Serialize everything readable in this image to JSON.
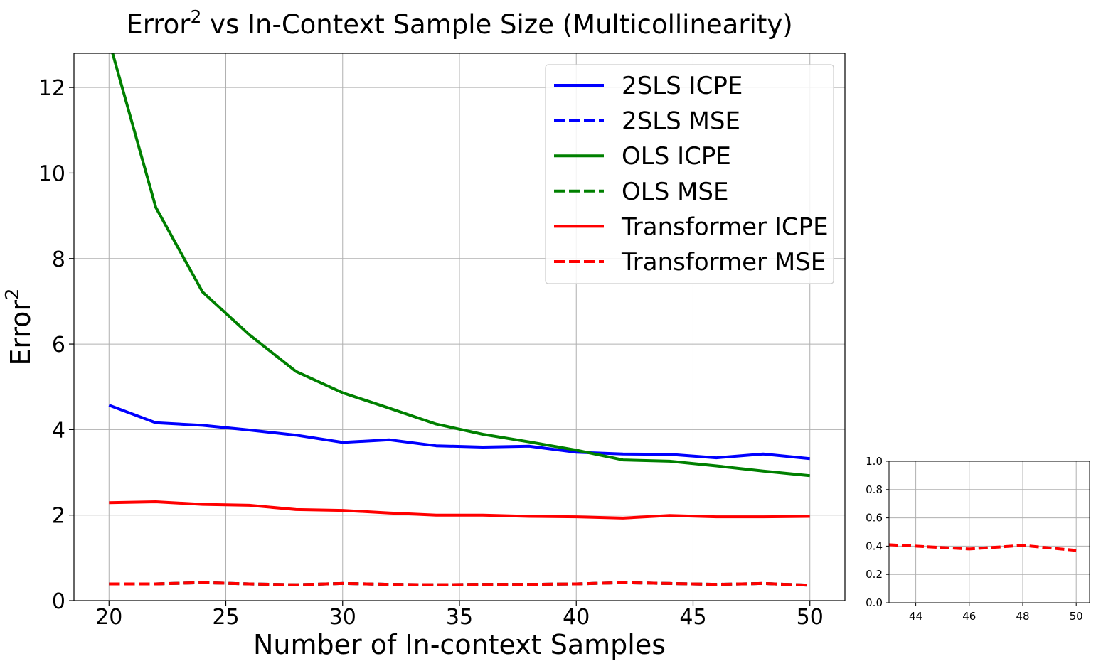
{
  "chart_data": [
    {
      "type": "line",
      "title_main": "Error",
      "title_sup": "2",
      "title_rest": " vs In-Context Sample Size (Multicollinearity)",
      "xlabel": "Number of In-context Samples",
      "ylabel_main": "Error",
      "ylabel_sup": "2",
      "xlim": [
        18.5,
        51.5
      ],
      "ylim": [
        0,
        12.8
      ],
      "xticks": [
        20,
        25,
        30,
        35,
        40,
        45,
        50
      ],
      "yticks": [
        0,
        2,
        4,
        6,
        8,
        10,
        12
      ],
      "grid": true,
      "legend_position": "top-right",
      "x": [
        20,
        22,
        24,
        26,
        28,
        30,
        32,
        34,
        36,
        38,
        40,
        42,
        44,
        46,
        48,
        50
      ],
      "series": [
        {
          "name": "2SLS ICPE",
          "color": "#0000ff",
          "dash": false,
          "values": [
            4.57,
            4.16,
            4.1,
            3.99,
            3.87,
            3.7,
            3.76,
            3.62,
            3.59,
            3.61,
            3.47,
            3.43,
            3.42,
            3.34,
            3.43,
            3.32
          ]
        },
        {
          "name": "2SLS MSE",
          "color": "#0000ff",
          "dash": true,
          "values": [
            0.39,
            0.39,
            0.42,
            0.39,
            0.37,
            0.4,
            0.38,
            0.37,
            0.38,
            0.38,
            0.39,
            0.42,
            0.4,
            0.38,
            0.4,
            0.36
          ]
        },
        {
          "name": "OLS ICPE",
          "color": "#008000",
          "dash": false,
          "values": [
            13.1,
            9.2,
            7.22,
            6.22,
            5.36,
            4.86,
            4.5,
            4.13,
            3.89,
            3.71,
            3.52,
            3.29,
            3.26,
            3.15,
            3.03,
            2.92
          ]
        },
        {
          "name": "OLS MSE",
          "color": "#008000",
          "dash": true,
          "values": [
            0.39,
            0.39,
            0.42,
            0.39,
            0.37,
            0.4,
            0.38,
            0.37,
            0.38,
            0.38,
            0.39,
            0.42,
            0.4,
            0.38,
            0.4,
            0.36
          ]
        },
        {
          "name": "Transformer ICPE",
          "color": "#ff0000",
          "dash": false,
          "values": [
            2.29,
            2.31,
            2.25,
            2.23,
            2.13,
            2.11,
            2.05,
            2.0,
            2.0,
            1.97,
            1.96,
            1.93,
            1.99,
            1.96,
            1.96,
            1.97
          ]
        },
        {
          "name": "Transformer MSE",
          "color": "#ff0000",
          "dash": true,
          "values": [
            0.39,
            0.39,
            0.42,
            0.39,
            0.37,
            0.4,
            0.38,
            0.37,
            0.38,
            0.38,
            0.39,
            0.42,
            0.4,
            0.38,
            0.4,
            0.36
          ]
        }
      ]
    },
    {
      "type": "line",
      "xlim": [
        43,
        50.5
      ],
      "ylim": [
        0,
        1
      ],
      "xticks": [
        44,
        46,
        48,
        50
      ],
      "yticks": [
        "0.0",
        "0.2",
        "0.4",
        "0.6",
        "0.8",
        "1.0"
      ],
      "grid": true,
      "x": [
        43,
        44,
        46,
        48,
        50
      ],
      "series": [
        {
          "name": "Transformer MSE",
          "color": "#ff0000",
          "dash": true,
          "values": [
            0.41,
            0.4,
            0.38,
            0.405,
            0.37
          ]
        }
      ]
    }
  ]
}
